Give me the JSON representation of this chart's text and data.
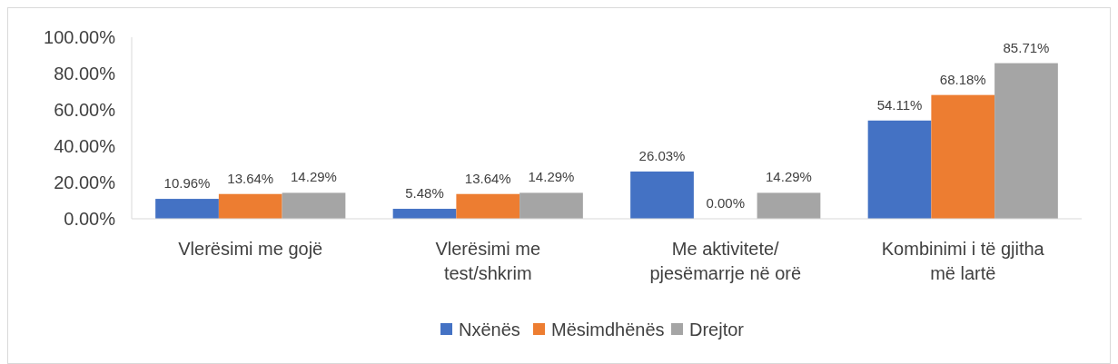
{
  "chart_data": {
    "type": "bar",
    "categories": [
      "Vlerësimi me gojë",
      "Vlerësimi me test/shkrim",
      "Me aktivitete/ pjesëmarrje në orë",
      "Kombinimi i të gjitha më lartë"
    ],
    "series": [
      {
        "name": "Nxënës",
        "color": "#4472c4",
        "values": [
          10.96,
          5.48,
          26.03,
          54.11
        ],
        "value_labels": [
          "10.96%",
          "5.48%",
          "26.03%",
          "54.11%"
        ]
      },
      {
        "name": "Mësimdhënës",
        "color": "#ed7d31",
        "values": [
          13.64,
          13.64,
          0,
          68.18
        ],
        "value_labels": [
          "13.64%",
          "13.64%",
          "0.00%",
          "68.18%"
        ]
      },
      {
        "name": "Drejtor",
        "color": "#a5a5a5",
        "values": [
          14.29,
          14.29,
          14.29,
          85.71
        ],
        "value_labels": [
          "14.29%",
          "14.29%",
          "14.29%",
          "85.71%"
        ]
      }
    ],
    "ylim": [
      0,
      100
    ],
    "yticks": [
      {
        "value": 0,
        "label": "0.00%"
      },
      {
        "value": 20,
        "label": "20.00%"
      },
      {
        "value": 40,
        "label": "40.00%"
      },
      {
        "value": 60,
        "label": "60.00%"
      },
      {
        "value": 80,
        "label": "80.00%"
      },
      {
        "value": 100,
        "label": "100.00%"
      }
    ],
    "grid": false,
    "legend": "bottom"
  }
}
